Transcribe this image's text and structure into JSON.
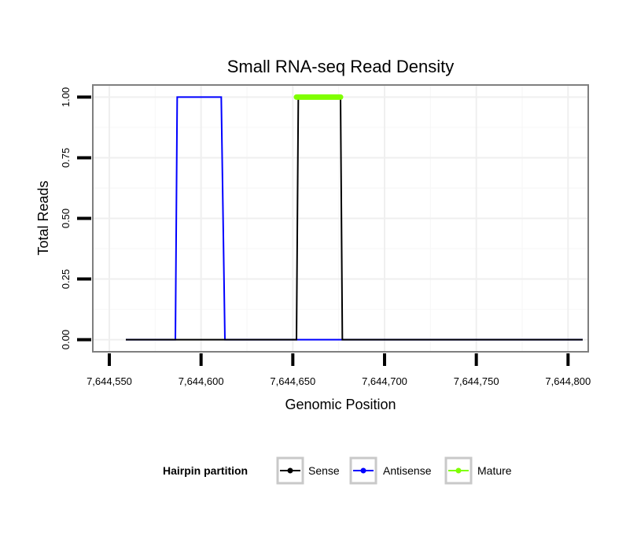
{
  "chart_data": {
    "type": "line",
    "title": "Small RNA-seq Read Density",
    "xlabel": "Genomic Position",
    "ylabel": "Total Reads",
    "xlim": [
      7644541,
      7644811
    ],
    "ylim": [
      -0.05,
      1.05
    ],
    "x_ticks": [
      7644550,
      7644600,
      7644650,
      7644700,
      7644750,
      7644800
    ],
    "x_tick_labels": [
      "7,644,550",
      "7,644,600",
      "7,644,650",
      "7,644,700",
      "7,644,750",
      "7,644,800"
    ],
    "y_ticks": [
      0,
      0.25,
      0.5,
      0.75,
      1
    ],
    "y_tick_labels": [
      "0.00",
      "0.25",
      "0.50",
      "0.75",
      "1.00"
    ],
    "grid": true,
    "legend": {
      "title": "Hairpin partition",
      "position": "bottom"
    },
    "series": [
      {
        "name": "Sense",
        "color": "#000000",
        "x": [
          7644559,
          7644652,
          7644653,
          7644676,
          7644677,
          7644808
        ],
        "y": [
          0,
          0,
          1,
          1,
          0,
          0
        ]
      },
      {
        "name": "Antisense",
        "color": "#0000ff",
        "x": [
          7644559,
          7644586,
          7644587,
          7644611,
          7644613,
          7644808
        ],
        "y": [
          0,
          0,
          1,
          1,
          0,
          0
        ]
      },
      {
        "name": "Mature",
        "color": "#7fff00",
        "x": [
          7644652,
          7644676
        ],
        "y": [
          1,
          1
        ]
      }
    ]
  }
}
